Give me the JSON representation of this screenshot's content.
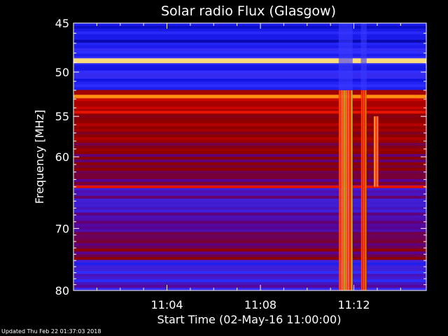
{
  "chart_data": {
    "type": "heatmap",
    "title": "Solar radio Flux (Glasgow)",
    "xlabel": "Start Time (02-May-16 11:00:00)",
    "ylabel": "Frequency [MHz]",
    "x_range_minutes": [
      0,
      15.1
    ],
    "x_ticks": [
      {
        "minute": 4,
        "label": "11:04"
      },
      {
        "minute": 8,
        "label": "11:08"
      },
      {
        "minute": 12,
        "label": "11:12"
      }
    ],
    "ylim": [
      45,
      80
    ],
    "y_scale": "log",
    "y_ticks": [
      {
        "value": 45,
        "label": "45"
      },
      {
        "value": 50,
        "label": "50"
      },
      {
        "value": 55,
        "label": "55"
      },
      {
        "value": 60,
        "label": "60"
      },
      {
        "value": 70,
        "label": "70"
      },
      {
        "value": 80,
        "label": "80"
      }
    ],
    "colormap": [
      "#000060",
      "#1010e0",
      "#3030ff",
      "#5a0090",
      "#8a0000",
      "#c00000",
      "#ff2000",
      "#ff8000",
      "#ffd060",
      "#ffffc0"
    ],
    "features": [
      {
        "kind": "constant_emission",
        "freq_mhz": 48.8,
        "intensity": "very high"
      },
      {
        "kind": "constant_emission",
        "freq_mhz": 52.7,
        "intensity": "high"
      },
      {
        "kind": "constant_emission",
        "freq_mhz": 54.5,
        "intensity": "medium"
      },
      {
        "kind": "constant_emission",
        "freq_mhz": 64.0,
        "intensity": "medium"
      },
      {
        "kind": "burst",
        "start_minute": 11.35,
        "end_minute": 11.95,
        "freq_range_mhz": [
          52,
          80
        ]
      },
      {
        "kind": "burst",
        "start_minute": 12.3,
        "end_minute": 12.55,
        "freq_range_mhz": [
          52,
          80
        ]
      },
      {
        "kind": "burst",
        "start_minute": 12.85,
        "end_minute": 13.05,
        "freq_range_mhz": [
          55,
          64
        ]
      }
    ]
  },
  "footer": {
    "updated": "Updated Thu Feb 22 01:37:03 2018"
  }
}
